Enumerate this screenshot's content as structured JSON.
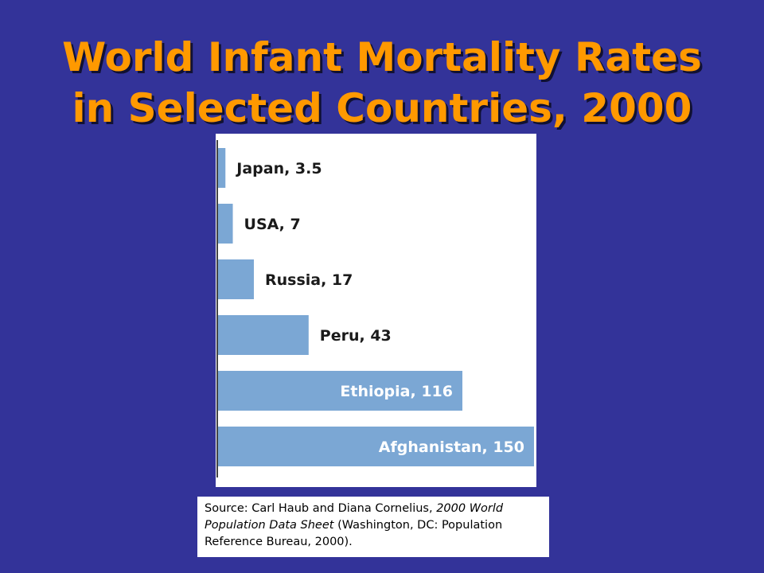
{
  "slide": {
    "title_line1": "World Infant Mortality Rates",
    "title_line2": "in Selected Countries, 2000"
  },
  "colors": {
    "background": "#333399",
    "title": "#ff9900",
    "bar": "#7ba7d4",
    "label_dark": "#1a1a1a",
    "label_light": "#ffffff"
  },
  "chart_data": {
    "type": "bar",
    "orientation": "horizontal",
    "categories": [
      "Japan",
      "USA",
      "Russia",
      "Peru",
      "Ethiopia",
      "Afghanistan"
    ],
    "values": [
      3.5,
      7,
      17,
      43,
      116,
      150
    ],
    "labels": [
      "Japan, 3.5",
      "USA, 7",
      "Russia, 17",
      "Peru, 43",
      "Ethiopia, 116",
      "Afghanistan, 150"
    ],
    "title": "",
    "xlabel": "",
    "ylabel": "",
    "xlim": [
      0,
      150
    ],
    "grid": false,
    "legend": "none"
  },
  "source": {
    "prefix": "Source: Carl Haub and Diana Cornelius, ",
    "italic_title": "2000 World Population Data Sheet",
    "suffix": " (Washington, DC: Population Reference Bureau, 2000)."
  }
}
